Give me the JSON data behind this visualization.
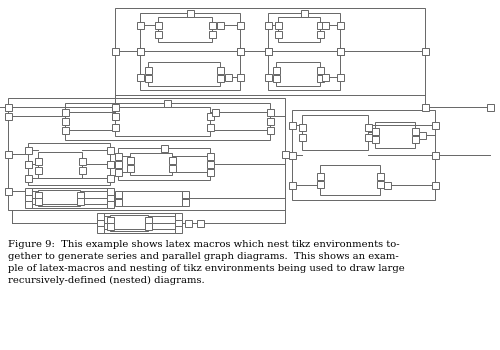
{
  "bg_color": "#ffffff",
  "line_color": "#666666",
  "lw": 0.7,
  "ns": 3.5,
  "caption": "Figure 9:  This example shows latex macros which nest tikz environments to-\ngether to generate series and parallel graph diagrams.  This shows an exam-\nple of latex-macros and nesting of tikz environments being used to draw large\nrecursively-defined (nested) diagrams.",
  "caption_fontsize": 7.2
}
